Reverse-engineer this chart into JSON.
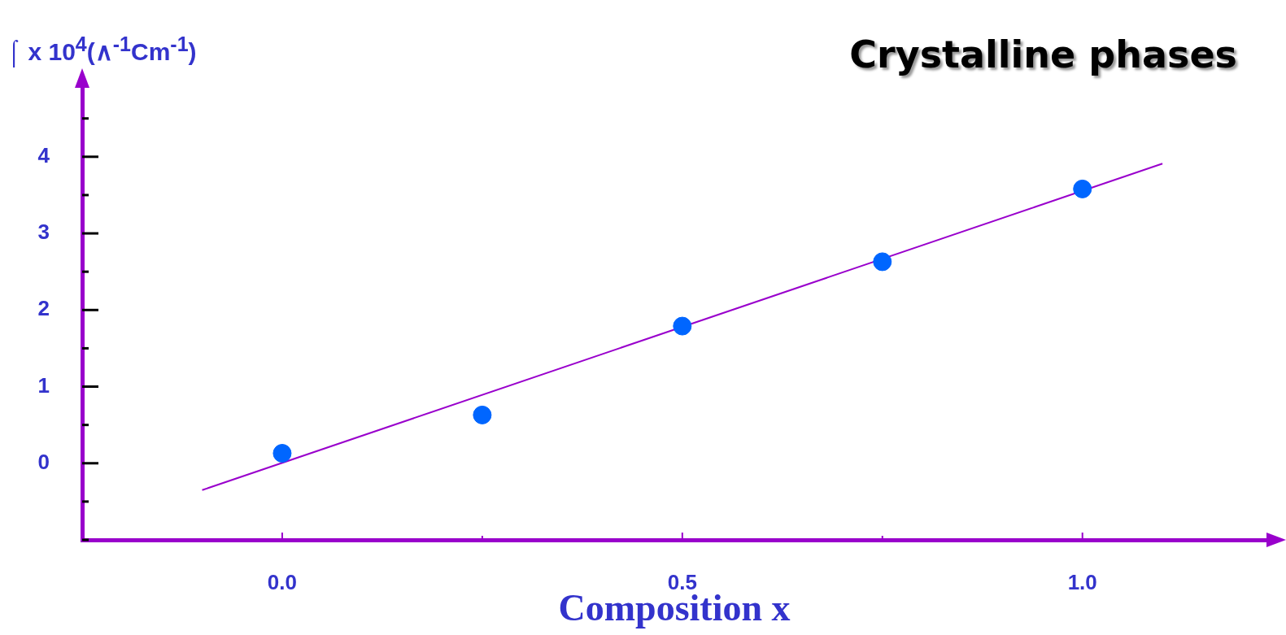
{
  "chart_data": {
    "type": "scatter",
    "title": "Crystalline phases",
    "xlabel": "Composition x",
    "ylabel": "⌠ x 10$^{4}$(∧$^{-1}$Cm$^{-1}$)",
    "xlim": [
      -0.25,
      1.23
    ],
    "ylim": [
      -1,
      4.9
    ],
    "xticks": [
      {
        "value": 0,
        "label": "0.0"
      },
      {
        "value": 0.25,
        "label": null
      },
      {
        "value": 0.5,
        "label": "0.5"
      },
      {
        "value": 0.75,
        "label": null
      },
      {
        "value": 1,
        "label": "1.0"
      }
    ],
    "yticks": [
      {
        "value": -1,
        "label": null
      },
      {
        "value": -0.5,
        "label": null
      },
      0,
      {
        "value": 0.5,
        "label": null
      },
      1,
      {
        "value": 1.5,
        "label": null
      },
      2,
      {
        "value": 2.5,
        "label": null
      },
      3,
      {
        "value": 3.5,
        "label": null
      },
      4,
      {
        "value": 4.5,
        "label": null
      }
    ],
    "grid": false,
    "legend": false,
    "marker": "circle",
    "series": [
      {
        "color": "#0066ff",
        "x": [
          0,
          0.25,
          0.5,
          0.75,
          1
        ],
        "values": [
          0.13,
          0.63,
          1.79,
          2.63,
          3.58
        ]
      },
      {
        "type": "line",
        "color": "#9900cc",
        "x": [
          -0.1,
          1.1
        ],
        "values": [
          -0.35,
          3.91
        ],
        "marker": "none"
      }
    ]
  }
}
